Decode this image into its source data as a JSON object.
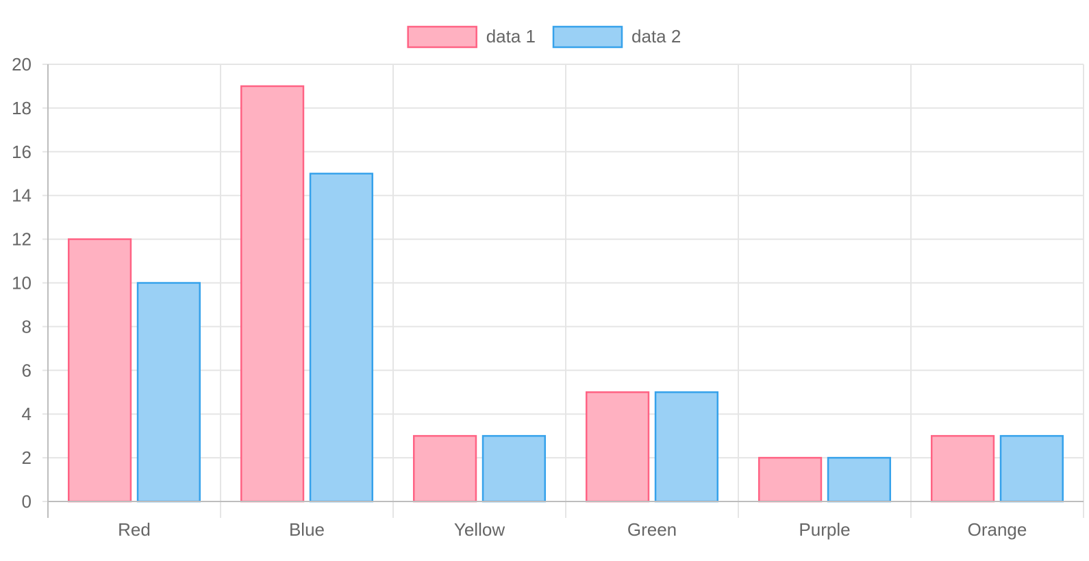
{
  "chart_data": {
    "type": "bar",
    "categories": [
      "Red",
      "Blue",
      "Yellow",
      "Green",
      "Purple",
      "Orange"
    ],
    "series": [
      {
        "name": "data 1",
        "values": [
          12,
          19,
          3,
          5,
          2,
          3
        ],
        "color": "#ff6384",
        "fill": "#ffb1c1"
      },
      {
        "name": "data 2",
        "values": [
          10,
          15,
          3,
          5,
          2,
          3
        ],
        "color": "#36a2eb",
        "fill": "#9ad0f5"
      }
    ],
    "title": "",
    "xlabel": "",
    "ylabel": "",
    "ylim": [
      0,
      20
    ],
    "yticks": [
      "0",
      "2",
      "4",
      "6",
      "8",
      "10",
      "12",
      "14",
      "16",
      "18",
      "20"
    ],
    "grid": true,
    "legend_position": "top-center"
  }
}
